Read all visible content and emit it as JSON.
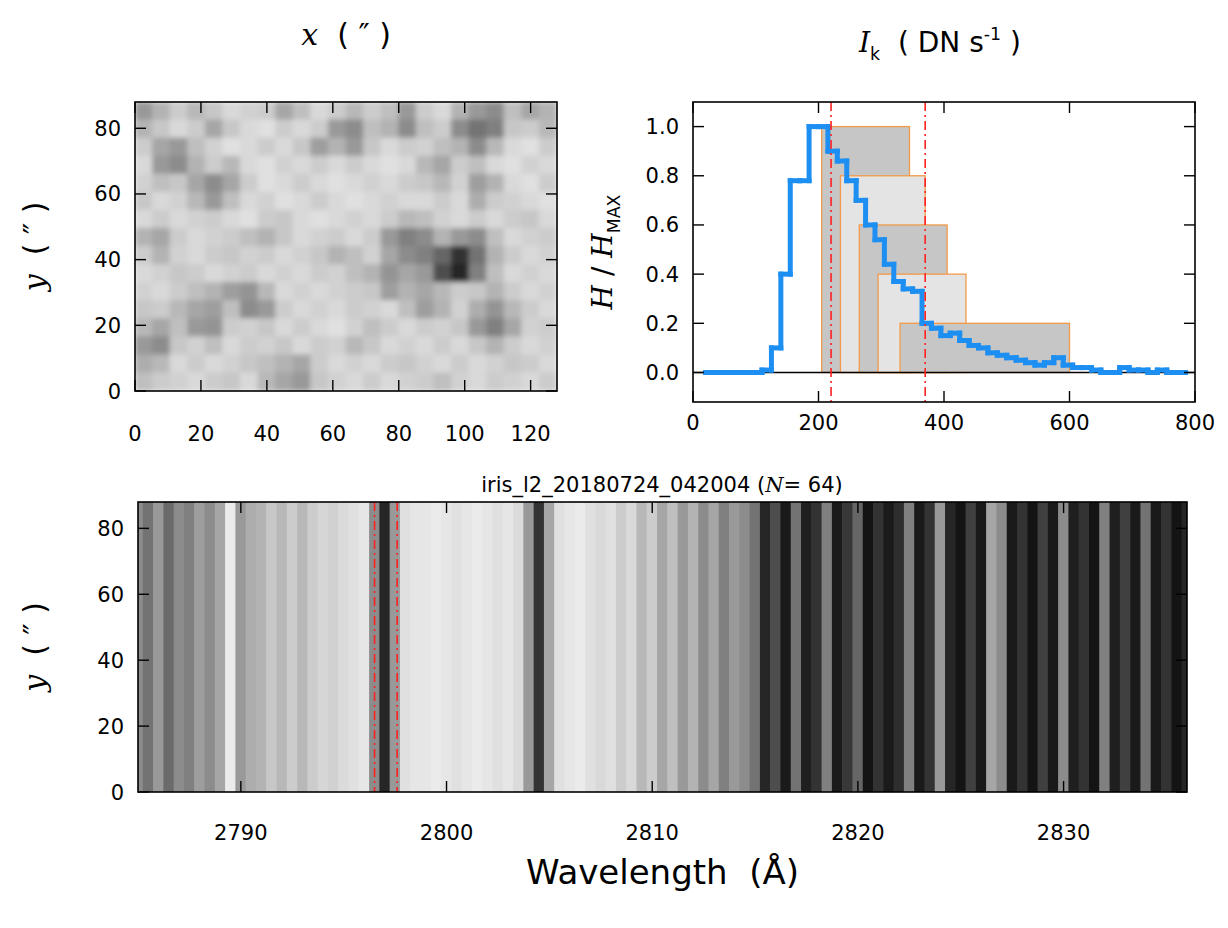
{
  "chart_data": [
    {
      "type": "heatmap",
      "title_parts": [
        {
          "text": "x",
          "style": "italic"
        },
        {
          "text": "  ( ″ )"
        }
      ],
      "y_label_parts": [
        {
          "text": "y",
          "style": "italic"
        },
        {
          "text": "  ( ″ )"
        }
      ],
      "xlim": [
        0,
        128
      ],
      "ylim": [
        0,
        88
      ],
      "xticks": [
        0,
        20,
        40,
        60,
        80,
        100,
        120
      ],
      "yticks": [
        0,
        20,
        40,
        60,
        80
      ],
      "color_range": [
        0,
        1
      ],
      "cells": [
        [
          0.6,
          0.7,
          0.8,
          0.72,
          0.78,
          0.85,
          0.82,
          0.8,
          0.65,
          0.75,
          0.85,
          0.8,
          0.72,
          0.8,
          0.75,
          0.6,
          0.8,
          0.85,
          0.7,
          0.6,
          0.55,
          0.75,
          0.65,
          0.7
        ],
        [
          0.7,
          0.78,
          0.85,
          0.8,
          0.65,
          0.78,
          0.85,
          0.88,
          0.8,
          0.85,
          0.8,
          0.6,
          0.55,
          0.75,
          0.7,
          0.55,
          0.75,
          0.8,
          0.55,
          0.45,
          0.5,
          0.78,
          0.8,
          0.72
        ],
        [
          0.8,
          0.65,
          0.6,
          0.75,
          0.82,
          0.88,
          0.85,
          0.8,
          0.85,
          0.78,
          0.62,
          0.7,
          0.6,
          0.78,
          0.85,
          0.8,
          0.82,
          0.75,
          0.7,
          0.55,
          0.72,
          0.85,
          0.88,
          0.8
        ],
        [
          0.85,
          0.6,
          0.55,
          0.7,
          0.8,
          0.72,
          0.85,
          0.88,
          0.82,
          0.85,
          0.8,
          0.85,
          0.8,
          0.85,
          0.88,
          0.85,
          0.72,
          0.65,
          0.8,
          0.75,
          0.85,
          0.88,
          0.82,
          0.85
        ],
        [
          0.82,
          0.75,
          0.78,
          0.65,
          0.55,
          0.65,
          0.8,
          0.88,
          0.85,
          0.8,
          0.85,
          0.88,
          0.85,
          0.82,
          0.85,
          0.8,
          0.78,
          0.72,
          0.82,
          0.62,
          0.7,
          0.85,
          0.88,
          0.8
        ],
        [
          0.78,
          0.85,
          0.82,
          0.72,
          0.6,
          0.75,
          0.85,
          0.82,
          0.88,
          0.85,
          0.8,
          0.85,
          0.88,
          0.85,
          0.82,
          0.85,
          0.85,
          0.8,
          0.85,
          0.68,
          0.8,
          0.82,
          0.85,
          0.88
        ],
        [
          0.85,
          0.8,
          0.85,
          0.82,
          0.8,
          0.85,
          0.88,
          0.8,
          0.78,
          0.85,
          0.88,
          0.85,
          0.82,
          0.85,
          0.8,
          0.72,
          0.75,
          0.82,
          0.85,
          0.8,
          0.85,
          0.8,
          0.78,
          0.85
        ],
        [
          0.7,
          0.65,
          0.8,
          0.85,
          0.82,
          0.8,
          0.75,
          0.7,
          0.78,
          0.85,
          0.82,
          0.8,
          0.85,
          0.8,
          0.6,
          0.5,
          0.55,
          0.7,
          0.6,
          0.55,
          0.75,
          0.85,
          0.82,
          0.8
        ],
        [
          0.8,
          0.7,
          0.82,
          0.85,
          0.8,
          0.78,
          0.82,
          0.8,
          0.85,
          0.82,
          0.78,
          0.7,
          0.75,
          0.82,
          0.65,
          0.55,
          0.5,
          0.4,
          0.2,
          0.45,
          0.7,
          0.8,
          0.85,
          0.82
        ],
        [
          0.85,
          0.82,
          0.78,
          0.8,
          0.85,
          0.82,
          0.8,
          0.85,
          0.82,
          0.85,
          0.8,
          0.82,
          0.75,
          0.7,
          0.58,
          0.65,
          0.6,
          0.3,
          0.15,
          0.5,
          0.75,
          0.85,
          0.82,
          0.85
        ],
        [
          0.82,
          0.85,
          0.8,
          0.75,
          0.7,
          0.62,
          0.58,
          0.72,
          0.85,
          0.82,
          0.85,
          0.82,
          0.8,
          0.78,
          0.62,
          0.7,
          0.65,
          0.72,
          0.8,
          0.78,
          0.7,
          0.8,
          0.85,
          0.82
        ],
        [
          0.78,
          0.8,
          0.72,
          0.65,
          0.62,
          0.75,
          0.55,
          0.6,
          0.8,
          0.85,
          0.82,
          0.85,
          0.8,
          0.82,
          0.85,
          0.75,
          0.62,
          0.7,
          0.82,
          0.68,
          0.58,
          0.72,
          0.8,
          0.85
        ],
        [
          0.72,
          0.65,
          0.75,
          0.6,
          0.58,
          0.8,
          0.82,
          0.78,
          0.85,
          0.8,
          0.85,
          0.88,
          0.82,
          0.75,
          0.8,
          0.85,
          0.8,
          0.82,
          0.78,
          0.6,
          0.5,
          0.65,
          0.82,
          0.8
        ],
        [
          0.6,
          0.55,
          0.78,
          0.82,
          0.75,
          0.85,
          0.8,
          0.82,
          0.78,
          0.85,
          0.8,
          0.82,
          0.72,
          0.78,
          0.85,
          0.82,
          0.85,
          0.8,
          0.85,
          0.78,
          0.7,
          0.8,
          0.85,
          0.82
        ],
        [
          0.68,
          0.72,
          0.85,
          0.8,
          0.85,
          0.82,
          0.78,
          0.75,
          0.7,
          0.65,
          0.8,
          0.85,
          0.82,
          0.85,
          0.8,
          0.78,
          0.82,
          0.85,
          0.8,
          0.85,
          0.82,
          0.78,
          0.8,
          0.85
        ],
        [
          0.75,
          0.8,
          0.82,
          0.85,
          0.8,
          0.78,
          0.85,
          0.72,
          0.65,
          0.6,
          0.78,
          0.82,
          0.85,
          0.8,
          0.85,
          0.82,
          0.8,
          0.75,
          0.82,
          0.85,
          0.8,
          0.82,
          0.85,
          0.8
        ]
      ]
    },
    {
      "type": "histogram",
      "title_parts": [
        {
          "text": "I",
          "style": "italic"
        },
        {
          "text": "k",
          "style": "sub"
        },
        {
          "text": "  ( DN s"
        },
        {
          "text": "-1",
          "style": "sup"
        },
        {
          "text": " )"
        }
      ],
      "y_label_parts": [
        {
          "text": "H",
          "style": "italic"
        },
        {
          "text": " / "
        },
        {
          "text": "H",
          "style": "italic"
        },
        {
          "text": "MAX",
          "style": "sub"
        }
      ],
      "xlim": [
        0,
        800
      ],
      "ylim": [
        -0.12,
        1.1
      ],
      "xticks": [
        0,
        200,
        400,
        600,
        800
      ],
      "yticks": [
        {
          "value": 0,
          "label": "0.0"
        },
        {
          "value": 0.2,
          "label": "0.2"
        },
        {
          "value": 0.4,
          "label": "0.4"
        },
        {
          "value": 0.6,
          "label": "0.6"
        },
        {
          "value": 0.8,
          "label": "0.8"
        },
        {
          "value": 1,
          "label": "1.0"
        }
      ],
      "color": "#1e8ff2",
      "bins": [
        20,
        35,
        50,
        65,
        80,
        95,
        110,
        125,
        140,
        155,
        170,
        185,
        200,
        215,
        230,
        245,
        260,
        275,
        290,
        305,
        320,
        335,
        350,
        365,
        380,
        395,
        410,
        425,
        440,
        455,
        470,
        485,
        500,
        515,
        530,
        545,
        560,
        575,
        590,
        605,
        620,
        635,
        650,
        665,
        680,
        695,
        710,
        725,
        740,
        755,
        770,
        785
      ],
      "values": [
        0,
        0,
        0,
        0,
        0,
        0,
        0.01,
        0.1,
        0.4,
        0.78,
        0.78,
        1.0,
        1.0,
        0.9,
        0.86,
        0.78,
        0.7,
        0.6,
        0.54,
        0.44,
        0.37,
        0.34,
        0.33,
        0.2,
        0.18,
        0.15,
        0.16,
        0.13,
        0.11,
        0.1,
        0.08,
        0.07,
        0.06,
        0.05,
        0.04,
        0.03,
        0.04,
        0.06,
        0.03,
        0.02,
        0.02,
        0.01,
        0,
        0,
        0.02,
        0.01,
        0.01,
        0,
        0.01,
        0,
        0
      ],
      "boxes": [
        {
          "x0": 205,
          "x1": 345,
          "y0": 0,
          "y1": 1.0,
          "color": "#c6c6c6"
        },
        {
          "x0": 235,
          "x1": 370,
          "y0": 0,
          "y1": 0.8,
          "color": "#e4e4e4"
        },
        {
          "x0": 265,
          "x1": 405,
          "y0": 0,
          "y1": 0.6,
          "color": "#c6c6c6"
        },
        {
          "x0": 295,
          "x1": 435,
          "y0": 0,
          "y1": 0.4,
          "color": "#e4e4e4"
        },
        {
          "x0": 330,
          "x1": 600,
          "y0": 0,
          "y1": 0.2,
          "color": "#c6c6c6"
        }
      ],
      "vlines": [
        {
          "x": 220,
          "color": "#ff2020"
        },
        {
          "x": 370,
          "color": "#ff2020"
        }
      ]
    },
    {
      "type": "spectrum",
      "title_parts": [
        {
          "text": "iris_l2_20180724_042004 ("
        },
        {
          "text": "N",
          "style": "italic"
        },
        {
          "text": "= 64)"
        }
      ],
      "x_label_parts": [
        {
          "text": "Wavelength  (Å)"
        }
      ],
      "y_label_parts": [
        {
          "text": "y",
          "style": "italic"
        },
        {
          "text": "  ( ″ )"
        }
      ],
      "xlim": [
        2785,
        2836
      ],
      "ylim": [
        0,
        88
      ],
      "xticks": [
        2790,
        2800,
        2810,
        2820,
        2830
      ],
      "yticks": [
        0,
        20,
        40,
        60,
        80
      ],
      "color_range": [
        0,
        1
      ],
      "x": [
        2785.0,
        2785.5,
        2786.0,
        2786.5,
        2787.0,
        2787.5,
        2788.0,
        2788.5,
        2789.0,
        2789.5,
        2790.0,
        2790.5,
        2791.0,
        2791.5,
        2792.0,
        2792.5,
        2793.0,
        2793.5,
        2794.0,
        2794.5,
        2795.0,
        2795.5,
        2796.0,
        2796.5,
        2797.0,
        2797.5,
        2798.0,
        2798.5,
        2799.0,
        2799.5,
        2800.0,
        2800.5,
        2801.0,
        2801.5,
        2802.0,
        2802.5,
        2803.0,
        2803.5,
        2804.0,
        2804.5,
        2805.0,
        2805.5,
        2806.0,
        2806.5,
        2807.0,
        2807.5,
        2808.0,
        2808.5,
        2809.0,
        2809.5,
        2810.0,
        2810.5,
        2811.0,
        2811.5,
        2812.0,
        2812.5,
        2813.0,
        2813.5,
        2814.0,
        2814.5,
        2815.0,
        2815.5,
        2816.0,
        2816.5,
        2817.0,
        2817.5,
        2818.0,
        2818.5,
        2819.0,
        2819.5,
        2820.0,
        2820.5,
        2821.0,
        2821.5,
        2822.0,
        2822.5,
        2823.0,
        2823.5,
        2824.0,
        2824.5,
        2825.0,
        2825.5,
        2826.0,
        2826.5,
        2827.0,
        2827.5,
        2828.0,
        2828.5,
        2829.0,
        2829.5,
        2830.0,
        2830.5,
        2831.0,
        2831.5,
        2832.0,
        2832.5,
        2833.0,
        2833.5,
        2834.0,
        2834.5,
        2835.0,
        2835.5,
        2836.0
      ],
      "values": [
        0.55,
        0.45,
        0.6,
        0.42,
        0.55,
        0.5,
        0.62,
        0.55,
        0.65,
        0.92,
        0.6,
        0.68,
        0.7,
        0.78,
        0.72,
        0.8,
        0.72,
        0.8,
        0.84,
        0.82,
        0.86,
        0.88,
        0.9,
        0.55,
        0.15,
        0.6,
        0.88,
        0.9,
        0.9,
        0.92,
        0.9,
        0.88,
        0.9,
        0.92,
        0.9,
        0.88,
        0.9,
        0.86,
        0.6,
        0.2,
        0.65,
        0.88,
        0.9,
        0.92,
        0.88,
        0.85,
        0.88,
        0.8,
        0.85,
        0.72,
        0.8,
        0.65,
        0.75,
        0.6,
        0.7,
        0.55,
        0.65,
        0.5,
        0.6,
        0.55,
        0.45,
        0.15,
        0.3,
        0.1,
        0.45,
        0.12,
        0.2,
        0.5,
        0.1,
        0.22,
        0.4,
        0.08,
        0.2,
        0.1,
        0.18,
        0.5,
        0.1,
        0.2,
        0.6,
        0.15,
        0.08,
        0.25,
        0.1,
        0.65,
        0.55,
        0.1,
        0.2,
        0.08,
        0.25,
        0.1,
        0.55,
        0.12,
        0.2,
        0.08,
        0.5,
        0.12,
        0.25,
        0.1,
        0.45,
        0.1,
        0.2,
        0.08,
        0.15
      ],
      "vlines": [
        {
          "x": 2796.5,
          "color": "#ff2020"
        },
        {
          "x": 2797.6,
          "color": "#ff2020"
        }
      ]
    }
  ]
}
